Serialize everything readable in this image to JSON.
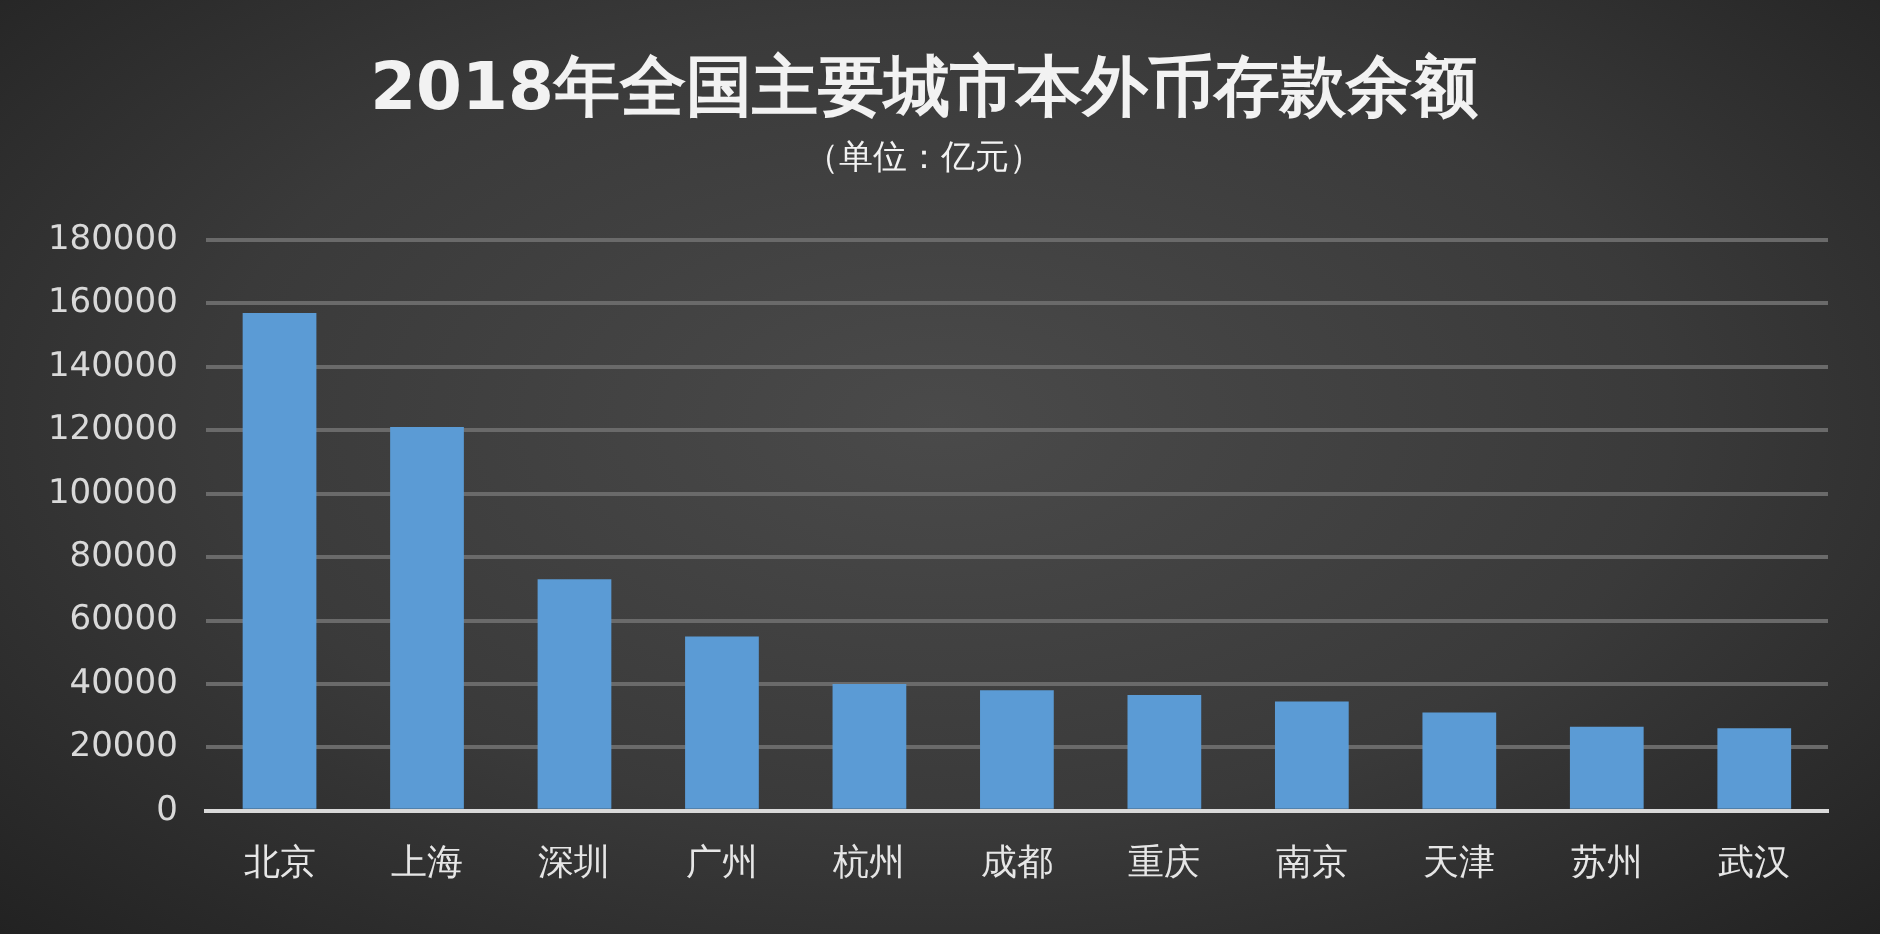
{
  "chart_data": {
    "type": "bar",
    "title": "2018年全国主要城市本外币存款余额",
    "subtitle": "（单位：亿元）",
    "categories": [
      "北京",
      "上海",
      "深圳",
      "广州",
      "杭州",
      "成都",
      "重庆",
      "南京",
      "天津",
      "苏州",
      "武汉"
    ],
    "values": [
      157000,
      121000,
      73000,
      55000,
      40000,
      38000,
      36500,
      34500,
      31000,
      26500,
      26000
    ],
    "color": "#5b9bd5",
    "ylim": [
      0,
      180000
    ],
    "yticks": [
      0,
      20000,
      40000,
      60000,
      80000,
      100000,
      120000,
      140000,
      160000,
      180000
    ],
    "grid": "y"
  }
}
